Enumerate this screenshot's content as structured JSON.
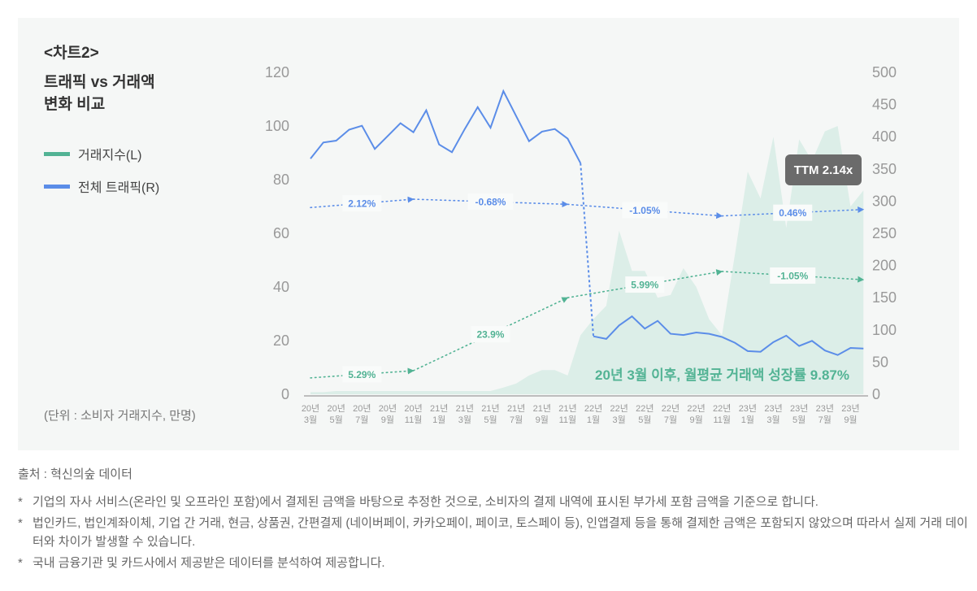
{
  "header": {
    "chart_label": "<차트2>",
    "title_line1": "트래픽 vs 거래액",
    "title_line2": "변화 비교"
  },
  "legend": [
    {
      "label": "거래지수(L)",
      "color": "#52b394"
    },
    {
      "label": "전체 트래픽(R)",
      "color": "#5b8de8"
    }
  ],
  "unit_note": "(단위 : 소비자 거래지수, 만명)",
  "badge": "TTM 2.14x",
  "annotation": "20년 3월 이후, 월평균 거래액 성장률 9.87%",
  "source": "출처 : 혁신의숲 데이터",
  "notes": [
    "기업의 자사 서비스(온라인 및 오프라인 포함)에서 결제된 금액을 바탕으로 추정한 것으로, 소비자의 결제 내역에 표시된 부가세 포함 금액을 기준으로 합니다.",
    "법인카드, 법인계좌이체, 기업 간 거래, 현금, 상품권, 간편결제 (네이버페이, 카카오페이, 페이코, 토스페이 등), 인앱결제 등을 통해 결제한 금액은 포함되지 않았으며 따라서 실제 거래 데이터와 차이가 발생할 수 있습니다.",
    "국내 금융기관 및 카드사에서 제공받은 데이터를 분석하여 제공합니다."
  ],
  "chart_data": {
    "type": "line",
    "left_axis": {
      "ylim": [
        0,
        120
      ],
      "ticks": [
        "0",
        "20",
        "40",
        "60",
        "80",
        "100",
        "120"
      ]
    },
    "right_axis": {
      "ylim": [
        0,
        500
      ],
      "ticks": [
        "0",
        "50",
        "100",
        "150",
        "200",
        "250",
        "300",
        "350",
        "400",
        "450",
        "500"
      ]
    },
    "x_tick_labels": [
      [
        "20년",
        "3월"
      ],
      [
        "20년",
        "5월"
      ],
      [
        "20년",
        "7월"
      ],
      [
        "20년",
        "9월"
      ],
      [
        "20년",
        "11월"
      ],
      [
        "21년",
        "1월"
      ],
      [
        "21년",
        "3월"
      ],
      [
        "21년",
        "5월"
      ],
      [
        "21년",
        "7월"
      ],
      [
        "21년",
        "9월"
      ],
      [
        "21년",
        "11월"
      ],
      [
        "22년",
        "1월"
      ],
      [
        "22년",
        "3월"
      ],
      [
        "22년",
        "5월"
      ],
      [
        "22년",
        "7월"
      ],
      [
        "22년",
        "9월"
      ],
      [
        "22년",
        "11월"
      ],
      [
        "23년",
        "1월"
      ],
      [
        "23년",
        "3월"
      ],
      [
        "23년",
        "5월"
      ],
      [
        "23년",
        "7월"
      ],
      [
        "23년",
        "9월"
      ]
    ],
    "months": [
      "2020-03",
      "2020-04",
      "2020-05",
      "2020-06",
      "2020-07",
      "2020-08",
      "2020-09",
      "2020-10",
      "2020-11",
      "2020-12",
      "2021-01",
      "2021-02",
      "2021-03",
      "2021-04",
      "2021-05",
      "2021-06",
      "2021-07",
      "2021-08",
      "2021-09",
      "2021-10",
      "2021-11",
      "2021-12",
      "2022-01",
      "2022-02",
      "2022-03",
      "2022-04",
      "2022-05",
      "2022-06",
      "2022-07",
      "2022-08",
      "2022-09",
      "2022-10",
      "2022-11",
      "2022-12",
      "2023-01",
      "2023-02",
      "2023-03",
      "2023-04",
      "2023-05",
      "2023-06",
      "2023-07",
      "2023-08",
      "2023-09",
      "2023-10"
    ],
    "series": [
      {
        "name": "거래지수(L)",
        "axis": "left",
        "type": "area",
        "color": "#52b394",
        "fill": "#dceee8",
        "values": [
          0.8,
          0.8,
          1.2,
          1.2,
          1.2,
          1.2,
          1.2,
          1.2,
          1.2,
          1.2,
          1.2,
          1.2,
          1.2,
          1.2,
          1.2,
          2.5,
          4,
          7,
          9,
          9,
          7,
          22,
          28,
          33,
          61,
          46,
          46,
          36,
          37,
          47,
          40,
          28,
          22,
          52,
          83,
          73,
          96,
          62,
          95,
          87,
          98,
          100,
          70,
          76
        ]
      },
      {
        "name": "전체 트래픽(R)",
        "axis": "right",
        "type": "line",
        "color": "#5b8de8",
        "values": [
          366,
          391,
          394,
          411,
          417,
          381,
          401,
          421,
          407,
          441,
          388,
          376,
          412,
          446,
          414,
          471,
          432,
          393,
          408,
          412,
          397,
          359,
          90,
          86,
          107,
          121,
          102,
          114,
          94,
          92,
          96,
          94,
          89,
          80,
          67,
          66,
          81,
          91,
          75,
          83,
          68,
          61,
          72,
          71
        ]
      }
    ],
    "trends": [
      {
        "axis": "right",
        "color": "#5b8de8",
        "from": [
          "2020-03",
          290
        ],
        "to": [
          "2020-11",
          303
        ],
        "label": "2.12%"
      },
      {
        "axis": "right",
        "color": "#5b8de8",
        "from": [
          "2020-11",
          303
        ],
        "to": [
          "2021-11",
          295
        ],
        "label": "-0.68%"
      },
      {
        "axis": "right",
        "color": "#5b8de8",
        "from": [
          "2021-11",
          295
        ],
        "to": [
          "2022-11",
          277
        ],
        "label": "-1.05%"
      },
      {
        "axis": "right",
        "color": "#5b8de8",
        "from": [
          "2022-11",
          277
        ],
        "to": [
          "2023-10",
          287
        ],
        "label": "0.46%"
      },
      {
        "axis": "left",
        "color": "#52b394",
        "from": [
          "2020-03",
          6.1
        ],
        "to": [
          "2020-11",
          8.8
        ],
        "label": "5.29%"
      },
      {
        "axis": "left",
        "color": "#52b394",
        "from": [
          "2020-11",
          8.8
        ],
        "to": [
          "2021-11",
          36
        ],
        "label": "23.9%"
      },
      {
        "axis": "left",
        "color": "#52b394",
        "from": [
          "2021-11",
          36
        ],
        "to": [
          "2022-11",
          45.8
        ],
        "label": "5.99%"
      },
      {
        "axis": "left",
        "color": "#52b394",
        "from": [
          "2022-11",
          45.8
        ],
        "to": [
          "2023-10",
          42.7
        ],
        "label": "-1.05%"
      }
    ],
    "grid": false
  }
}
